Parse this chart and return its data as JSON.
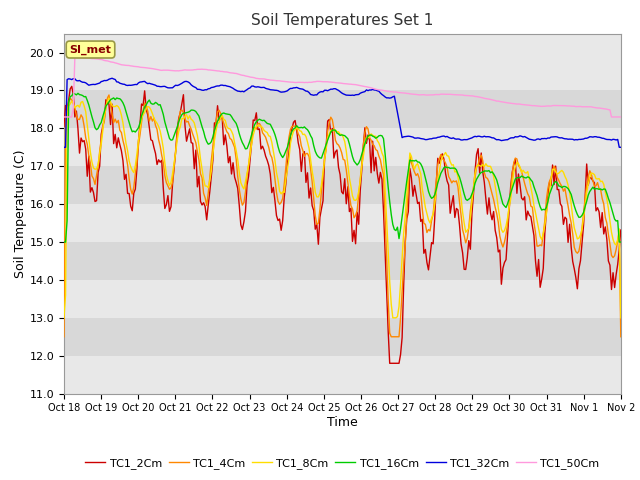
{
  "title": "Soil Temperatures Set 1",
  "xlabel": "Time",
  "ylabel": "Soil Temperature (C)",
  "ylim": [
    11.0,
    20.5
  ],
  "yticks": [
    11.0,
    12.0,
    13.0,
    14.0,
    15.0,
    16.0,
    17.0,
    18.0,
    19.0,
    20.0
  ],
  "xtick_labels": [
    "Oct 18",
    "Oct 19",
    "Oct 20",
    "Oct 21",
    "Oct 22",
    "Oct 23",
    "Oct 24",
    "Oct 25",
    "Oct 26",
    "Oct 27",
    "Oct 28",
    "Oct 29",
    "Oct 30",
    "Oct 31",
    "Nov 1",
    "Nov 2"
  ],
  "legend_labels": [
    "TC1_2Cm",
    "TC1_4Cm",
    "TC1_8Cm",
    "TC1_16Cm",
    "TC1_32Cm",
    "TC1_50Cm"
  ],
  "line_colors": [
    "#cc0000",
    "#ff8800",
    "#ffdd00",
    "#00cc00",
    "#0000dd",
    "#ff99dd"
  ],
  "annotation_text": "SI_met",
  "annotation_color": "#880000",
  "annotation_bg": "#ffff99",
  "n_points": 360,
  "band_colors": [
    "#e8e8e8",
    "#d8d8d8"
  ]
}
